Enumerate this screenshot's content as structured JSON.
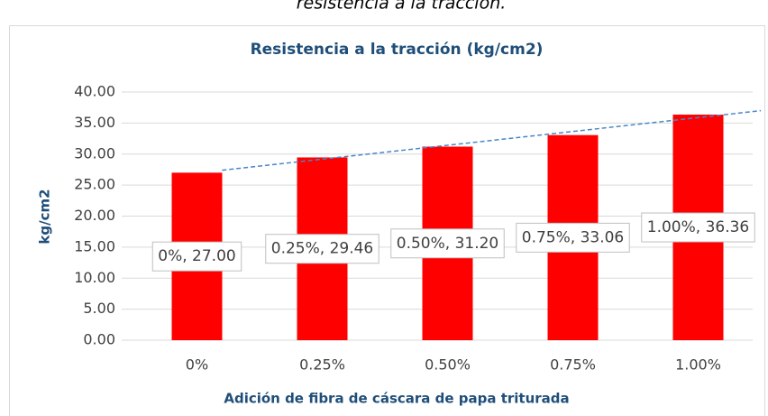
{
  "caption": "resistencia a la tracción.",
  "chart_data": {
    "type": "bar",
    "title": "Resistencia a la tracción (kg/cm2)",
    "x_label": "Adición de fibra de cáscara de papa triturada",
    "y_label": "kg/cm2",
    "categories": [
      "0%",
      "0.25%",
      "0.50%",
      "0.75%",
      "1.00%"
    ],
    "values": [
      27.0,
      29.46,
      31.2,
      33.06,
      36.36
    ],
    "value_labels": [
      "0%, 27.00",
      "0.25%, 29.46",
      "0.50%, 31.20",
      "0.75%, 33.06",
      "1.00%, 36.36"
    ],
    "color": "#ff0000",
    "trendline": true,
    "trendline_color": "#4a86c8",
    "ylim": [
      0,
      40
    ],
    "yticks": [
      {
        "value": 0,
        "label": "0.00"
      },
      {
        "value": 5,
        "label": "5.00"
      },
      {
        "value": 10,
        "label": "10.00"
      },
      {
        "value": 15,
        "label": "15.00"
      },
      {
        "value": 20,
        "label": "20.00"
      },
      {
        "value": 25,
        "label": "25.00"
      },
      {
        "value": 30,
        "label": "30.00"
      },
      {
        "value": 35,
        "label": "35.00"
      },
      {
        "value": 40,
        "label": "40.00"
      }
    ],
    "grid": true
  }
}
